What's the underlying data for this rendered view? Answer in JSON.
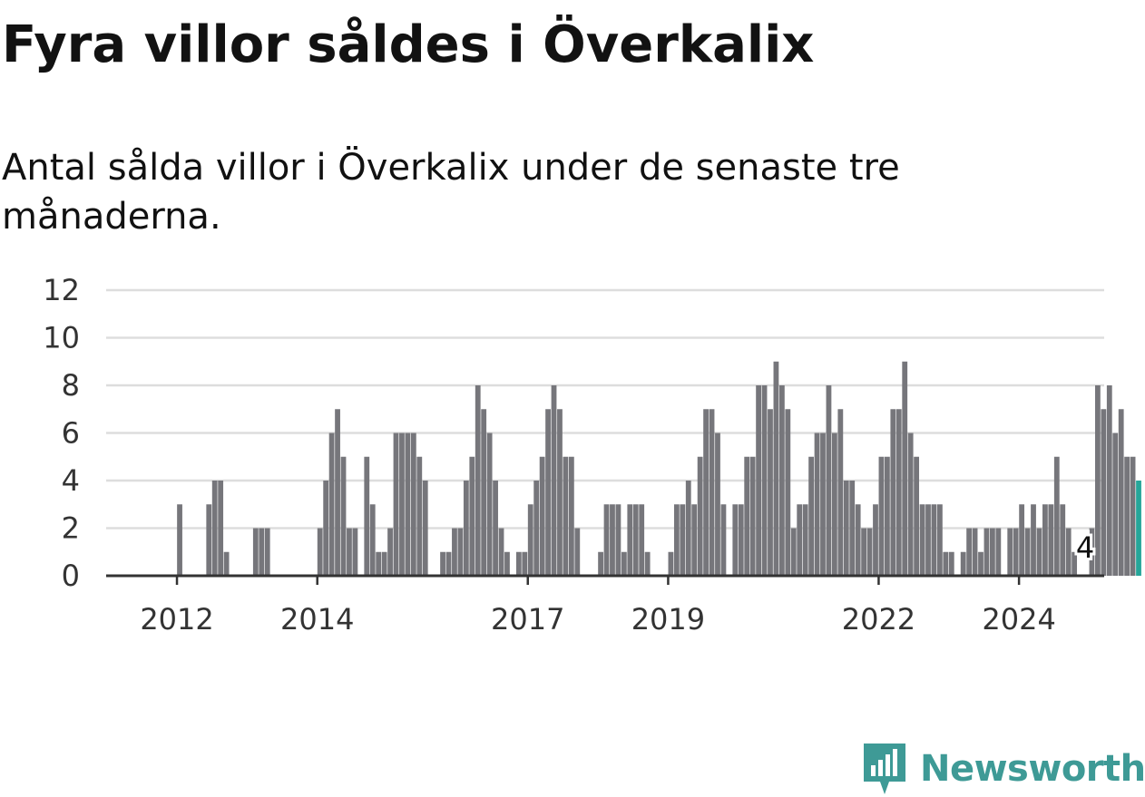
{
  "title": "Fyra villor såldes i Överkalix",
  "subtitle": "Antal sålda villor i Överkalix under de senaste tre månaderna.",
  "logo": {
    "text": "Newsworthy",
    "icon": "newsworthy-logo-icon"
  },
  "colors": {
    "bar": "#76767b",
    "highlight": "#26a69a",
    "grid": "#dddddd",
    "axis": "#333333",
    "brand": "#3e9a96"
  },
  "chart_data": {
    "type": "bar",
    "title": "",
    "xlabel": "",
    "ylabel": "",
    "ylim": [
      0,
      12
    ],
    "yticks": [
      0,
      2,
      4,
      6,
      8,
      10,
      12
    ],
    "x_tick_labels": [
      "2012",
      "2014",
      "2017",
      "2019",
      "2022",
      "2024"
    ],
    "x_tick_index": [
      12,
      36,
      72,
      96,
      132,
      156
    ],
    "grid": true,
    "highlight_last": true,
    "annotation": {
      "label": "4",
      "index": 167
    },
    "start": "2011-01",
    "frequency": "monthly",
    "values": [
      0,
      0,
      0,
      0,
      0,
      0,
      0,
      0,
      0,
      0,
      0,
      0,
      3,
      0,
      0,
      0,
      0,
      3,
      4,
      4,
      1,
      0,
      0,
      0,
      0,
      2,
      2,
      2,
      0,
      0,
      0,
      0,
      0,
      0,
      0,
      0,
      2,
      4,
      6,
      7,
      5,
      2,
      2,
      0,
      5,
      3,
      1,
      1,
      2,
      6,
      6,
      6,
      6,
      5,
      4,
      0,
      0,
      1,
      1,
      2,
      2,
      4,
      5,
      8,
      7,
      6,
      4,
      2,
      1,
      0,
      1,
      1,
      3,
      4,
      5,
      7,
      8,
      7,
      5,
      5,
      2,
      0,
      0,
      0,
      1,
      3,
      3,
      3,
      1,
      3,
      3,
      3,
      1,
      0,
      0,
      0,
      1,
      3,
      3,
      4,
      3,
      5,
      7,
      7,
      6,
      3,
      0,
      3,
      3,
      5,
      5,
      8,
      8,
      7,
      9,
      8,
      7,
      2,
      3,
      3,
      5,
      6,
      6,
      8,
      6,
      7,
      4,
      4,
      3,
      2,
      2,
      3,
      5,
      5,
      7,
      7,
      9,
      6,
      5,
      3,
      3,
      3,
      3,
      1,
      1,
      0,
      1,
      2,
      2,
      1,
      2,
      2,
      2,
      0,
      2,
      2,
      3,
      2,
      3,
      2,
      3,
      3,
      5,
      3,
      2,
      1,
      0,
      0,
      2,
      8,
      7,
      8,
      6,
      7,
      5,
      5,
      4
    ]
  }
}
